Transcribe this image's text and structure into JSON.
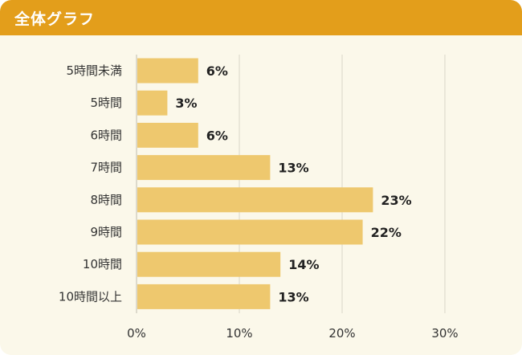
{
  "header": {
    "title": "全体グラフ"
  },
  "colors": {
    "header_bg": "#e39e1b",
    "panel_bg": "#fbf8ea",
    "bar": "#eec86e",
    "grid": "#d9d6c8"
  },
  "chart_data": {
    "type": "bar",
    "orientation": "horizontal",
    "categories": [
      "5時間未満",
      "5時間",
      "6時間",
      "7時間",
      "8時間",
      "9時間",
      "10時間",
      "10時間以上"
    ],
    "values": [
      6,
      3,
      6,
      13,
      23,
      22,
      14,
      13
    ],
    "value_labels": [
      "6%",
      "3%",
      "6%",
      "13%",
      "23%",
      "22%",
      "14%",
      "13%"
    ],
    "xlim": [
      0,
      30
    ],
    "xticks": [
      0,
      10,
      20,
      30
    ],
    "xtick_labels": [
      "0%",
      "10%",
      "20%",
      "30%"
    ],
    "grid": true,
    "legend": false
  }
}
